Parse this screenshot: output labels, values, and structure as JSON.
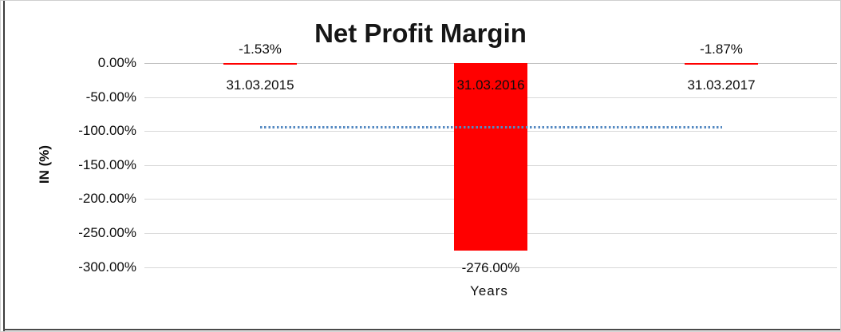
{
  "chart_data": {
    "type": "bar",
    "title": "Net Profit Margin",
    "xlabel": "Years",
    "ylabel": "IN (%)",
    "categories": [
      "31.03.2015",
      "31.03.2016",
      "31.03.2017"
    ],
    "values": [
      -1.53,
      -276.0,
      -1.87
    ],
    "data_labels": [
      "-1.53%",
      "-276.00%",
      "-1.87%"
    ],
    "y_ticks": [
      "0.00%",
      "-50.00%",
      "-100.00%",
      "-150.00%",
      "-200.00%",
      "-250.00%",
      "-300.00%"
    ],
    "y_tick_values": [
      0,
      -50,
      -100,
      -150,
      -200,
      -250,
      -300
    ],
    "ylim": [
      -300,
      0
    ],
    "grid": "horizontal light gray",
    "legend": "none",
    "bar_color": "#ff0000",
    "trendline": {
      "type": "linear",
      "style": "dotted",
      "color": "#568ac2",
      "approx_value": -93.13
    }
  }
}
